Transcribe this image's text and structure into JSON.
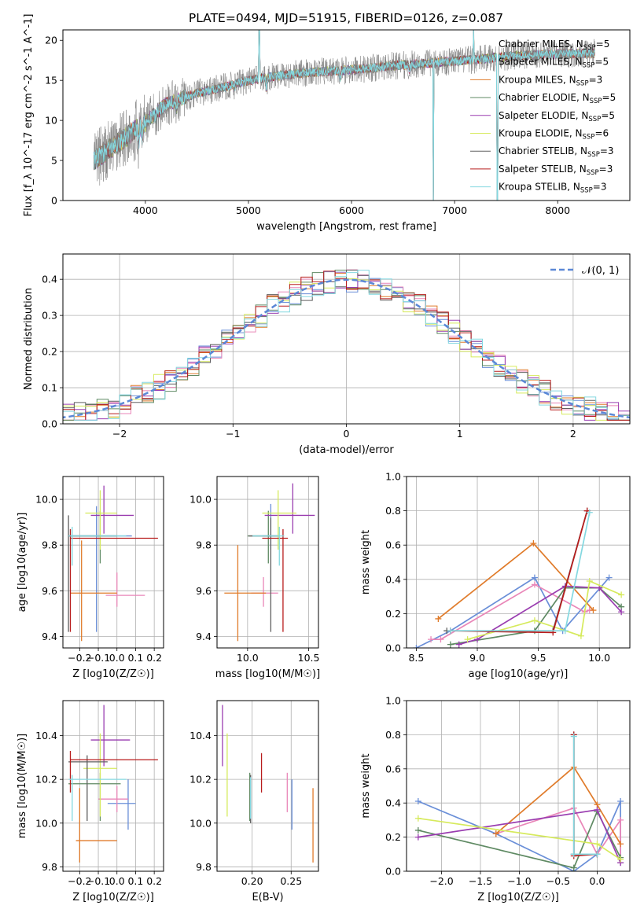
{
  "figure_title": "PLATE=0494, MJD=51915, FIBERID=0126, z=0.087",
  "colors": {
    "Chabrier MILES": "#6a8fd8",
    "Salpeter MILES": "#e986b8",
    "Kroupa MILES": "#e07b2a",
    "Chabrier ELODIE": "#5f8a63",
    "Salpeter ELODIE": "#9a3db0",
    "Kroupa ELODIE": "#d6ea5c",
    "Chabrier STELIB": "#606060",
    "Salpeter STELIB": "#b81c1c",
    "Kroupa STELIB": "#84d8e0",
    "gaussian": "#5b88d6",
    "grid": "#b0b0b0"
  },
  "chart_data": [
    {
      "type": "line",
      "panel": "spectrum",
      "xlabel": "wavelength [Angstrom, rest frame]",
      "ylabel": "Flux [f_λ 10^-17 erg cm^-2 s^-1 A^-1]",
      "xlim": [
        3200,
        8700
      ],
      "ylim": [
        0,
        21.3
      ],
      "xticks": [
        4000,
        5000,
        6000,
        7000,
        8000
      ],
      "yticks": [
        0,
        5,
        10,
        15,
        20
      ],
      "grid": false,
      "legend_position": "right",
      "continuum": {
        "x": [
          3500,
          3800,
          4000,
          4200,
          4500,
          4800,
          5000,
          5300,
          5600,
          6000,
          6400,
          6800,
          7200,
          7600,
          8000,
          8400
        ],
        "y": [
          5.0,
          7.8,
          9.8,
          12.0,
          13.4,
          14.3,
          15.0,
          15.6,
          16.0,
          16.3,
          16.8,
          17.2,
          17.6,
          18.1,
          18.3,
          18.4
        ]
      },
      "series_names": [
        "Chabrier MILES",
        "Salpeter MILES",
        "Kroupa MILES",
        "Chabrier ELODIE",
        "Salpeter ELODIE",
        "Kroupa ELODIE",
        "Chabrier STELIB",
        "Salpeter STELIB",
        "Kroupa STELIB"
      ],
      "legend": [
        {
          "name": "Chabrier MILES",
          "label": "Chabrier MILES, N",
          "sub": "SSP",
          "value": "=5",
          "show_line": false
        },
        {
          "name": "Salpeter MILES",
          "label": "Salpeter MILES, N",
          "sub": "SSP",
          "value": "=5",
          "show_line": false
        },
        {
          "name": "Kroupa MILES",
          "label": "Kroupa MILES, N",
          "sub": "SSP",
          "value": "=3",
          "show_line": true
        },
        {
          "name": "Chabrier ELODIE",
          "label": "Chabrier ELODIE, N",
          "sub": "SSP",
          "value": "=5",
          "show_line": true
        },
        {
          "name": "Salpeter ELODIE",
          "label": "Salpeter ELODIE, N",
          "sub": "SSP",
          "value": "=5",
          "show_line": true
        },
        {
          "name": "Kroupa ELODIE",
          "label": "Kroupa ELODIE, N",
          "sub": "SSP",
          "value": "=6",
          "show_line": true
        },
        {
          "name": "Chabrier STELIB",
          "label": "Chabrier STELIB, N",
          "sub": "SSP",
          "value": "=3",
          "show_line": true
        },
        {
          "name": "Salpeter STELIB",
          "label": "Salpeter STELIB, N",
          "sub": "SSP",
          "value": "=3",
          "show_line": true
        },
        {
          "name": "Kroupa STELIB",
          "label": "Kroupa STELIB, N",
          "sub": "SSP",
          "value": "=3",
          "show_line": true
        }
      ]
    },
    {
      "type": "line",
      "panel": "residuals",
      "xlabel": "(data-model)/error",
      "ylabel": "Normed distribution",
      "xlim": [
        -2.5,
        2.5
      ],
      "ylim": [
        0,
        0.47
      ],
      "xticks": [
        -2,
        -1,
        0,
        1,
        2
      ],
      "yticks": [
        0.0,
        0.1,
        0.2,
        0.3,
        0.4
      ],
      "grid": true,
      "legend_position": "top-right",
      "gaussian_label": "𝒩(0, 1)",
      "bin_width": 0.1,
      "bins_from": -2.5,
      "series_names": [
        "Chabrier MILES",
        "Salpeter MILES",
        "Kroupa MILES",
        "Chabrier ELODIE",
        "Salpeter ELODIE",
        "Kroupa ELODIE",
        "Chabrier STELIB",
        "Salpeter STELIB",
        "Kroupa STELIB"
      ]
    },
    {
      "type": "scatter",
      "panel": "age-vs-Z",
      "xlabel": "Z [log10(Z/Z☉)]",
      "ylabel": "age [log10(age/yr)]",
      "xlim": [
        -0.29,
        0.25
      ],
      "ylim": [
        9.35,
        10.1
      ],
      "xticks": [
        -0.2,
        -0.1,
        0.0,
        0.1,
        0.2
      ],
      "yticks": [
        9.4,
        9.6,
        9.8,
        10.0
      ],
      "grid": true,
      "points": [
        {
          "series": "Chabrier MILES",
          "x": [
            -0.26,
            0.08
          ],
          "y": [
            9.42,
            9.97
          ],
          "cx": -0.11,
          "cy": 9.84
        },
        {
          "series": "Salpeter MILES",
          "x": [
            -0.06,
            0.15
          ],
          "y": [
            9.53,
            9.68
          ],
          "cx": 0.0,
          "cy": 9.58
        },
        {
          "series": "Kroupa MILES",
          "x": [
            -0.25,
            0.0
          ],
          "y": [
            9.38,
            9.82
          ],
          "cx": -0.19,
          "cy": 9.59
        },
        {
          "series": "Chabrier ELODIE",
          "x": [
            -0.26,
            0.0
          ],
          "y": [
            9.72,
            9.95
          ],
          "cx": -0.09,
          "cy": 9.84
        },
        {
          "series": "Salpeter ELODIE",
          "x": [
            -0.14,
            0.09
          ],
          "y": [
            9.85,
            10.06
          ],
          "cx": -0.07,
          "cy": 9.93
        },
        {
          "series": "Kroupa ELODIE",
          "x": [
            -0.17,
            0.0
          ],
          "y": [
            9.78,
            10.04
          ],
          "cx": -0.09,
          "cy": 9.94
        },
        {
          "series": "Chabrier STELIB",
          "x": [
            -0.26,
            0.0
          ],
          "y": [
            9.42,
            9.93
          ],
          "cx": -0.26,
          "cy": 9.84
        },
        {
          "series": "Salpeter STELIB",
          "x": [
            -0.25,
            0.22
          ],
          "y": [
            9.42,
            9.87
          ],
          "cx": -0.25,
          "cy": 9.83
        },
        {
          "series": "Kroupa STELIB",
          "x": [
            -0.26,
            0.05
          ],
          "y": [
            9.71,
            9.88
          ],
          "cx": -0.24,
          "cy": 9.84
        }
      ]
    },
    {
      "type": "scatter",
      "panel": "age-vs-mass",
      "xlabel": "mass [log10(M/M☉)]",
      "ylabel": "",
      "xlim": [
        9.75,
        10.58
      ],
      "ylim": [
        9.35,
        10.1
      ],
      "xticks": [
        10.0,
        10.5
      ],
      "yticks": [
        9.4,
        9.6,
        9.8,
        10.0
      ],
      "grid": true,
      "points": [
        {
          "series": "Chabrier MILES",
          "x": [
            10.12,
            10.25
          ],
          "y": [
            9.78,
            9.98
          ],
          "cx": 10.19,
          "cy": 9.84
        },
        {
          "series": "Salpeter MILES",
          "x": [
            10.03,
            10.25
          ],
          "y": [
            9.53,
            9.66
          ],
          "cx": 10.13,
          "cy": 9.59
        },
        {
          "series": "Kroupa MILES",
          "x": [
            9.81,
            10.15
          ],
          "y": [
            9.38,
            9.8
          ],
          "cx": 9.92,
          "cy": 9.59
        },
        {
          "series": "Chabrier ELODIE",
          "x": [
            10.0,
            10.24
          ],
          "y": [
            9.72,
            9.95
          ],
          "cx": 10.17,
          "cy": 9.84
        },
        {
          "series": "Salpeter ELODIE",
          "x": [
            10.14,
            10.55
          ],
          "y": [
            9.85,
            10.07
          ],
          "cx": 10.37,
          "cy": 9.93
        },
        {
          "series": "Kroupa ELODIE",
          "x": [
            10.12,
            10.4
          ],
          "y": [
            9.78,
            10.04
          ],
          "cx": 10.25,
          "cy": 9.94
        },
        {
          "series": "Chabrier STELIB",
          "x": [
            10.01,
            10.26
          ],
          "y": [
            9.42,
            9.92
          ],
          "cx": 10.19,
          "cy": 9.84
        },
        {
          "series": "Salpeter STELIB",
          "x": [
            10.12,
            10.33
          ],
          "y": [
            9.42,
            9.87
          ],
          "cx": 10.29,
          "cy": 9.83
        },
        {
          "series": "Kroupa STELIB",
          "x": [
            10.04,
            10.3
          ],
          "y": [
            9.71,
            9.88
          ],
          "cx": 10.26,
          "cy": 9.84
        }
      ]
    },
    {
      "type": "line",
      "panel": "mass-weight-vs-age",
      "xlabel": "age [log10(age/yr)]",
      "ylabel": "mass weight",
      "xlim": [
        8.42,
        10.25
      ],
      "ylim": [
        0,
        1.0
      ],
      "xticks": [
        8.5,
        9.0,
        9.5,
        10.0
      ],
      "yticks": [
        0.0,
        0.2,
        0.4,
        0.6,
        0.8,
        1.0
      ],
      "grid": true,
      "series": [
        {
          "name": "Chabrier MILES",
          "x": [
            8.5,
            8.78,
            9.47,
            9.7,
            10.08
          ],
          "y": [
            0.0,
            0.1,
            0.41,
            0.1,
            0.41
          ]
        },
        {
          "name": "Salpeter MILES",
          "x": [
            8.62,
            8.7,
            9.47,
            9.88,
            9.92
          ],
          "y": [
            0.05,
            0.05,
            0.37,
            0.21,
            0.22
          ]
        },
        {
          "name": "Kroupa MILES",
          "x": [
            8.68,
            9.46,
            9.95
          ],
          "y": [
            0.17,
            0.61,
            0.22
          ]
        },
        {
          "name": "Chabrier ELODIE",
          "x": [
            8.78,
            9.47,
            9.72,
            10.0,
            10.18
          ],
          "y": [
            0.02,
            0.1,
            0.35,
            0.35,
            0.24
          ]
        },
        {
          "name": "Salpeter ELODIE",
          "x": [
            8.85,
            9.0,
            9.72,
            10.0,
            10.18
          ],
          "y": [
            0.02,
            0.05,
            0.36,
            0.35,
            0.21
          ]
        },
        {
          "name": "Kroupa ELODIE",
          "x": [
            8.92,
            9.47,
            9.85,
            9.92,
            10.18
          ],
          "y": [
            0.05,
            0.16,
            0.07,
            0.39,
            0.31
          ]
        },
        {
          "name": "Chabrier STELIB",
          "x": [
            8.75,
            9.62,
            9.9
          ],
          "y": [
            0.1,
            0.1,
            0.8
          ]
        },
        {
          "name": "Salpeter STELIB",
          "x": [
            8.78,
            9.62,
            9.9
          ],
          "y": [
            0.1,
            0.09,
            0.8
          ]
        },
        {
          "name": "Kroupa STELIB",
          "x": [
            8.78,
            9.72,
            9.92
          ],
          "y": [
            0.1,
            0.1,
            0.79
          ]
        }
      ]
    },
    {
      "type": "scatter",
      "panel": "mass-vs-Z",
      "xlabel": "Z [log10(Z/Z☉)]",
      "ylabel": "mass [log10(M/M☉)]",
      "xlim": [
        -0.29,
        0.25
      ],
      "ylim": [
        9.78,
        10.56
      ],
      "xticks": [
        -0.2,
        -0.1,
        0.0,
        0.1,
        0.2
      ],
      "yticks": [
        9.8,
        10.0,
        10.2,
        10.4
      ],
      "grid": true,
      "points": [
        {
          "series": "Chabrier MILES",
          "x": [
            -0.05,
            0.1
          ],
          "y": [
            9.97,
            10.2
          ],
          "cx": 0.06,
          "cy": 10.09
        },
        {
          "series": "Salpeter MILES",
          "x": [
            -0.1,
            0.06
          ],
          "y": [
            10.05,
            10.17
          ],
          "cx": 0.0,
          "cy": 10.11
        },
        {
          "series": "Kroupa MILES",
          "x": [
            -0.22,
            0.0
          ],
          "y": [
            9.82,
            10.16
          ],
          "cx": -0.2,
          "cy": 9.92
        },
        {
          "series": "Chabrier ELODIE",
          "x": [
            -0.26,
            0.02
          ],
          "y": [
            10.01,
            10.23
          ],
          "cx": -0.09,
          "cy": 10.18
        },
        {
          "series": "Salpeter ELODIE",
          "x": [
            -0.14,
            0.07
          ],
          "y": [
            10.26,
            10.54
          ],
          "cx": -0.07,
          "cy": 10.38
        },
        {
          "series": "Kroupa ELODIE",
          "x": [
            -0.18,
            0.0
          ],
          "y": [
            10.03,
            10.41
          ],
          "cx": -0.09,
          "cy": 10.25
        },
        {
          "series": "Chabrier STELIB",
          "x": [
            -0.26,
            -0.05
          ],
          "y": [
            10.01,
            10.31
          ],
          "cx": -0.16,
          "cy": 10.28
        },
        {
          "series": "Salpeter STELIB",
          "x": [
            -0.25,
            0.22
          ],
          "y": [
            10.14,
            10.33
          ],
          "cx": -0.25,
          "cy": 10.29
        },
        {
          "series": "Kroupa STELIB",
          "x": [
            -0.26,
            0.05
          ],
          "y": [
            10.01,
            10.22
          ],
          "cx": -0.24,
          "cy": 10.2
        }
      ]
    },
    {
      "type": "scatter",
      "panel": "mass-vs-EBV",
      "xlabel": "E(B-V)",
      "ylabel": "",
      "xlim": [
        0.155,
        0.285
      ],
      "ylim": [
        9.78,
        10.56
      ],
      "xticks": [
        0.2,
        0.25
      ],
      "yticks": [
        9.8,
        10.0,
        10.2,
        10.4
      ],
      "grid": true,
      "points": [
        {
          "series": "Chabrier MILES",
          "x": [
            0.251,
            0.251
          ],
          "y": [
            9.97,
            10.2
          ],
          "cx": 0.251,
          "cy": 10.09
        },
        {
          "series": "Salpeter MILES",
          "x": [
            0.245,
            0.245
          ],
          "y": [
            10.05,
            10.23
          ],
          "cx": 0.245,
          "cy": 10.12
        },
        {
          "series": "Kroupa MILES",
          "x": [
            0.278,
            0.278
          ],
          "y": [
            9.82,
            10.16
          ],
          "cx": 0.278,
          "cy": 9.98
        },
        {
          "series": "Chabrier ELODIE",
          "x": [
            0.197,
            0.197
          ],
          "y": [
            10.01,
            10.23
          ],
          "cx": 0.197,
          "cy": 10.12
        },
        {
          "series": "Salpeter ELODIE",
          "x": [
            0.162,
            0.162
          ],
          "y": [
            10.26,
            10.54
          ],
          "cx": 0.162,
          "cy": 10.4
        },
        {
          "series": "Kroupa ELODIE",
          "x": [
            0.168,
            0.168
          ],
          "y": [
            10.03,
            10.41
          ],
          "cx": 0.168,
          "cy": 10.22
        },
        {
          "series": "Chabrier STELIB",
          "x": [
            0.198,
            0.198
          ],
          "y": [
            10.0,
            10.22
          ],
          "cx": 0.198,
          "cy": 10.11
        },
        {
          "series": "Salpeter STELIB",
          "x": [
            0.212,
            0.212
          ],
          "y": [
            10.14,
            10.32
          ],
          "cx": 0.212,
          "cy": 10.23
        },
        {
          "series": "Kroupa STELIB",
          "x": [
            0.198,
            0.198
          ],
          "y": [
            10.02,
            10.21
          ],
          "cx": 0.198,
          "cy": 10.12
        }
      ]
    },
    {
      "type": "line",
      "panel": "mass-weight-vs-Z",
      "xlabel": "Z [log10(Z/Z☉)]",
      "ylabel": "mass weight",
      "xlim": [
        -2.45,
        0.42
      ],
      "ylim": [
        0,
        1.0
      ],
      "xticks": [
        -2.0,
        -1.5,
        -1.0,
        -0.5,
        0.0
      ],
      "yticks": [
        0.0,
        0.2,
        0.4,
        0.6,
        0.8,
        1.0
      ],
      "grid": true,
      "series": [
        {
          "name": "Chabrier MILES",
          "x": [
            -2.3,
            -1.3,
            -0.3,
            0.0,
            0.3,
            0.3
          ],
          "y": [
            0.41,
            0.22,
            0.0,
            0.1,
            0.41,
            0.05
          ]
        },
        {
          "name": "Salpeter MILES",
          "x": [
            -1.3,
            -0.3,
            0.0,
            0.3,
            0.3
          ],
          "y": [
            0.22,
            0.37,
            0.1,
            0.3,
            0.05
          ]
        },
        {
          "name": "Kroupa MILES",
          "x": [
            -1.3,
            -0.3,
            0.0,
            0.3
          ],
          "y": [
            0.22,
            0.61,
            0.39,
            0.16
          ]
        },
        {
          "name": "Chabrier ELODIE",
          "x": [
            -2.3,
            -0.3,
            0.0,
            0.3
          ],
          "y": [
            0.24,
            0.02,
            0.35,
            0.08
          ]
        },
        {
          "name": "Salpeter ELODIE",
          "x": [
            -2.3,
            0.0,
            0.3
          ],
          "y": [
            0.2,
            0.36,
            0.05
          ]
        },
        {
          "name": "Kroupa ELODIE",
          "x": [
            -2.3,
            0.0,
            0.3
          ],
          "y": [
            0.31,
            0.16,
            0.07
          ]
        },
        {
          "name": "Chabrier STELIB",
          "x": [
            -0.3,
            -0.3,
            0.0
          ],
          "y": [
            0.8,
            0.1,
            0.1
          ]
        },
        {
          "name": "Salpeter STELIB",
          "x": [
            -0.3,
            -0.3,
            0.0
          ],
          "y": [
            0.8,
            0.09,
            0.1
          ]
        },
        {
          "name": "Kroupa STELIB",
          "x": [
            -0.3,
            -0.3,
            0.0
          ],
          "y": [
            0.79,
            0.1,
            0.1
          ]
        }
      ]
    }
  ]
}
